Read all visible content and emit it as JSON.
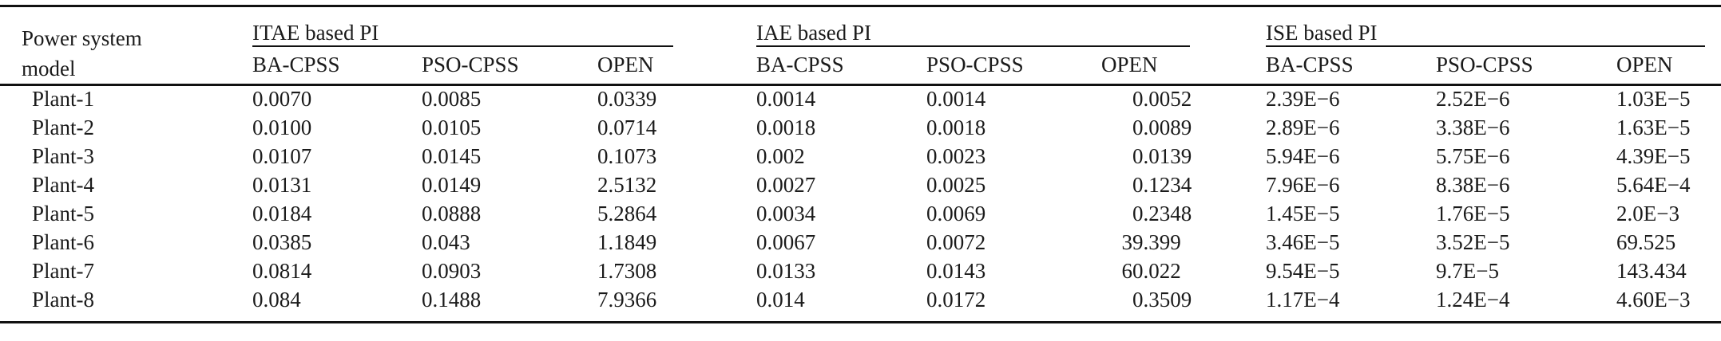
{
  "table": {
    "col0_header": "Power system model",
    "groups": [
      {
        "label": "ITAE based PI",
        "columns": [
          "BA-CPSS",
          "PSO-CPSS",
          "OPEN"
        ]
      },
      {
        "label": "IAE based PI",
        "columns": [
          "BA-CPSS",
          "PSO-CPSS",
          "OPEN"
        ]
      },
      {
        "label": "ISE based PI",
        "columns": [
          "BA-CPSS",
          "PSO-CPSS",
          "OPEN"
        ]
      }
    ],
    "rows": [
      {
        "model": "Plant-1",
        "values": [
          "0.0070",
          "0.0085",
          "0.0339",
          "0.0014",
          "0.0014",
          "0.0052",
          "2.39E−6",
          "2.52E−6",
          "1.03E−5"
        ]
      },
      {
        "model": "Plant-2",
        "values": [
          "0.0100",
          "0.0105",
          "0.0714",
          "0.0018",
          "0.0018",
          "0.0089",
          "2.89E−6",
          "3.38E−6",
          "1.63E−5"
        ]
      },
      {
        "model": "Plant-3",
        "values": [
          "0.0107",
          "0.0145",
          "0.1073",
          "0.002",
          "0.0023",
          "0.0139",
          "5.94E−6",
          "5.75E−6",
          "4.39E−5"
        ]
      },
      {
        "model": "Plant-4",
        "values": [
          "0.0131",
          "0.0149",
          "2.5132",
          "0.0027",
          "0.0025",
          "0.1234",
          "7.96E−6",
          "8.38E−6",
          "5.64E−4"
        ]
      },
      {
        "model": "Plant-5",
        "values": [
          "0.0184",
          "0.0888",
          "5.2864",
          "0.0034",
          "0.0069",
          "0.2348",
          "1.45E−5",
          "1.76E−5",
          "2.0E−3"
        ]
      },
      {
        "model": "Plant-6",
        "values": [
          "0.0385",
          "0.043",
          "1.1849",
          "0.0067",
          "0.0072",
          "39.399",
          "3.46E−5",
          "3.52E−5",
          "69.525"
        ]
      },
      {
        "model": "Plant-7",
        "values": [
          "0.0814",
          "0.0903",
          "1.7308",
          "0.0133",
          "0.0143",
          "60.022",
          "9.54E−5",
          "9.7E−5",
          "143.434"
        ]
      },
      {
        "model": "Plant-8",
        "values": [
          "0.084",
          "0.1488",
          "7.9366",
          "0.014",
          "0.0172",
          "0.3509",
          "1.17E−4",
          "1.24E−4",
          "4.60E−3"
        ]
      }
    ],
    "decimal_aligned_column_index": 5,
    "text_color": "#1b1b1b",
    "rule_color": "#111111"
  }
}
